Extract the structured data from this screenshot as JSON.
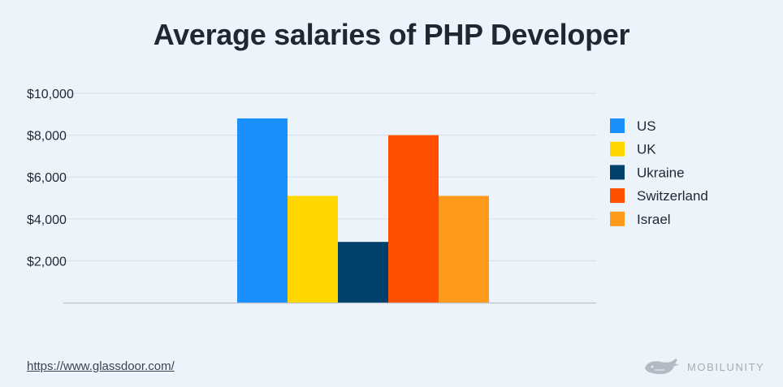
{
  "title": "Average salaries of PHP Developer",
  "source": "https://www.glassdoor.com/",
  "brand": "MOBILUNITY",
  "colors": {
    "background": "#edf3fa",
    "grid": "#d6dee8",
    "axis": "#b9c2cc",
    "text": "#1e2732"
  },
  "chart_data": {
    "type": "bar",
    "categories": [
      "US",
      "UK",
      "Ukraine",
      "Switzerland",
      "Israel"
    ],
    "values": [
      8800,
      5100,
      2900,
      8000,
      5100
    ],
    "colors": [
      "#1a90ff",
      "#ffd600",
      "#00416b",
      "#ff5000",
      "#ff9a1c"
    ],
    "yticks": [
      "$2,000",
      "$4,000",
      "$6,000",
      "$8,000",
      "$10,000"
    ],
    "ytick_values": [
      2000,
      4000,
      6000,
      8000,
      10000
    ],
    "ylim": [
      0,
      10000
    ],
    "grid": true,
    "legend": "right"
  }
}
